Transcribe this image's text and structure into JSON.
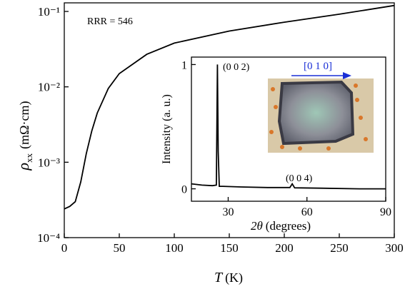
{
  "chart_data": [
    {
      "type": "line",
      "annotation": "RRR = 546",
      "ylabel_symbol": "ρ",
      "ylabel_sub": "xx",
      "ylabel_unit": "(mΩ·cm)",
      "xlabel_symbol": "T",
      "xlabel_unit": "(K)",
      "x": [
        0,
        5,
        10,
        15,
        20,
        25,
        30,
        40,
        50,
        75,
        100,
        150,
        200,
        250,
        300
      ],
      "series": [
        {
          "name": "ρxx",
          "color": "#000000",
          "values": [
            0.00024,
            0.00026,
            0.0003,
            0.00055,
            0.0013,
            0.0026,
            0.0045,
            0.0095,
            0.015,
            0.027,
            0.038,
            0.055,
            0.072,
            0.092,
            0.12
          ]
        }
      ],
      "xlim": [
        0,
        300
      ],
      "xticks": [
        0,
        50,
        100,
        150,
        200,
        250,
        300
      ],
      "ylim": [
        0.0001,
        0.13
      ],
      "ylog": true,
      "yticks": [
        {
          "value": 0.0001,
          "label": "10⁻⁴"
        },
        {
          "value": 0.001,
          "label": "10⁻³"
        },
        {
          "value": 0.01,
          "label": "10⁻²"
        },
        {
          "value": 0.1,
          "label": "10⁻¹"
        }
      ]
    },
    {
      "type": "line",
      "ylabel": "Intensity (a. u.)",
      "xlabel_symbol": "2θ",
      "xlabel_unit": "(degrees)",
      "peak_labels": [
        "(0 0 2)",
        "(0 0 4)"
      ],
      "direction_label": "[0 1 0]",
      "x": [
        16,
        20,
        24,
        25.5,
        25.9,
        26.2,
        26.6,
        28,
        35,
        45,
        53.5,
        54.4,
        55.3,
        65,
        80,
        90
      ],
      "series": [
        {
          "name": "XRD",
          "color": "#000000",
          "values": [
            0.04,
            0.03,
            0.025,
            0.03,
            1.0,
            0.3,
            0.02,
            0.02,
            0.015,
            0.01,
            0.01,
            0.04,
            0.008,
            0.005,
            0.0,
            0.0
          ]
        }
      ],
      "xlim": [
        16,
        90
      ],
      "xticks": [
        30,
        60,
        90
      ],
      "ylim": [
        -0.1,
        1.06
      ],
      "yticks": [
        0,
        1
      ]
    }
  ]
}
